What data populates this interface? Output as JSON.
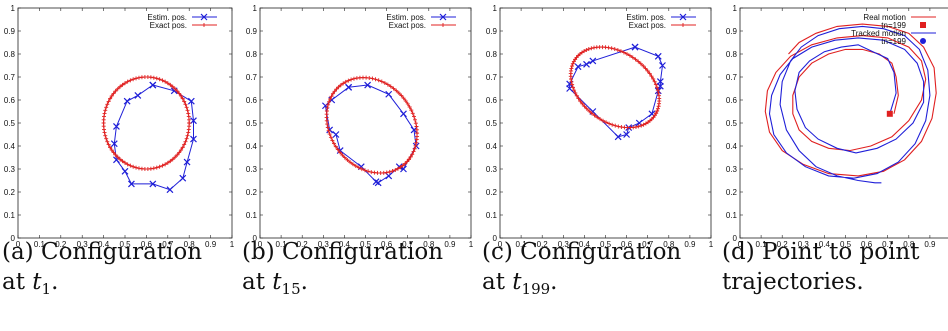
{
  "chart_data": [
    {
      "type": "line",
      "title": "",
      "xlabel": "",
      "ylabel": "",
      "xlim": [
        0,
        1
      ],
      "ylim": [
        0,
        1
      ],
      "xticks": [
        "0",
        "0.1",
        "0.2",
        "0.3",
        "0.4",
        "0.5",
        "0.6",
        "0.7",
        "0.8",
        "0.9",
        "1"
      ],
      "yticks": [
        "0",
        "0.1",
        "0.2",
        "0.3",
        "0.4",
        "0.5",
        "0.6",
        "0.7",
        "0.8",
        "0.9",
        "1"
      ],
      "grid": false,
      "legend_position": "top-right",
      "series": [
        {
          "name": "Estim. pos.",
          "color": "#1f1fd8",
          "marker": "x",
          "x": [
            0.63,
            0.73,
            0.81,
            0.82,
            0.82,
            0.79,
            0.77,
            0.71,
            0.63,
            0.53,
            0.5,
            0.46,
            0.45,
            0.46,
            0.51,
            0.56,
            0.63
          ],
          "y": [
            0.665,
            0.64,
            0.595,
            0.51,
            0.43,
            0.33,
            0.26,
            0.21,
            0.235,
            0.235,
            0.29,
            0.34,
            0.41,
            0.485,
            0.595,
            0.62,
            0.665
          ]
        },
        {
          "name": "Exact pos.",
          "color": "#e02020",
          "marker": "+",
          "shape": "circle",
          "center": [
            0.6,
            0.5
          ],
          "radius": 0.2
        }
      ],
      "caption": "(a) Configuration at t1."
    },
    {
      "type": "line",
      "title": "",
      "xlabel": "",
      "ylabel": "",
      "xlim": [
        0,
        1
      ],
      "ylim": [
        0,
        1
      ],
      "xticks": [
        "0",
        "0.1",
        "0.2",
        "0.3",
        "0.4",
        "0.5",
        "0.6",
        "0.7",
        "0.8",
        "0.9",
        "1"
      ],
      "yticks": [
        "0",
        "0.1",
        "0.2",
        "0.3",
        "0.4",
        "0.5",
        "0.6",
        "0.7",
        "0.8",
        "0.9",
        "1"
      ],
      "grid": false,
      "legend_position": "top-right",
      "series": [
        {
          "name": "Estim. pos.",
          "color": "#1f1fd8",
          "marker": "x",
          "x": [
            0.42,
            0.51,
            0.61,
            0.68,
            0.73,
            0.74,
            0.68,
            0.66,
            0.61,
            0.56,
            0.55,
            0.48,
            0.38,
            0.36,
            0.33,
            0.31,
            0.34,
            0.42
          ],
          "y": [
            0.655,
            0.665,
            0.625,
            0.54,
            0.47,
            0.4,
            0.3,
            0.31,
            0.27,
            0.24,
            0.245,
            0.31,
            0.38,
            0.45,
            0.47,
            0.575,
            0.6,
            0.655
          ]
        },
        {
          "name": "Exact pos.",
          "color": "#e02020",
          "marker": "+",
          "shape": "ellipse",
          "center": [
            0.53,
            0.49
          ],
          "rx": 0.23,
          "ry": 0.19,
          "rotation_deg": -40
        }
      ],
      "caption": "(b) Configuration at t15."
    },
    {
      "type": "line",
      "title": "",
      "xlabel": "",
      "ylabel": "",
      "xlim": [
        0,
        1
      ],
      "ylim": [
        0,
        1
      ],
      "xticks": [
        "0",
        "0.1",
        "0.2",
        "0.3",
        "0.4",
        "0.5",
        "0.6",
        "0.7",
        "0.8",
        "0.9",
        "1"
      ],
      "yticks": [
        "0",
        "0.1",
        "0.2",
        "0.3",
        "0.4",
        "0.5",
        "0.6",
        "0.7",
        "0.8",
        "0.9",
        "1"
      ],
      "grid": false,
      "legend_position": "top-right",
      "series": [
        {
          "name": "Estim. pos.",
          "color": "#1f1fd8",
          "marker": "x",
          "x": [
            0.64,
            0.75,
            0.77,
            0.76,
            0.76,
            0.75,
            0.72,
            0.66,
            0.61,
            0.6,
            0.56,
            0.44,
            0.33,
            0.33,
            0.37,
            0.41,
            0.44,
            0.64
          ],
          "y": [
            0.83,
            0.79,
            0.75,
            0.68,
            0.66,
            0.64,
            0.54,
            0.5,
            0.48,
            0.45,
            0.44,
            0.55,
            0.65,
            0.67,
            0.745,
            0.755,
            0.77,
            0.83
          ]
        },
        {
          "name": "Exact pos.",
          "color": "#e02020",
          "marker": "+",
          "shape": "ellipse",
          "center": [
            0.545,
            0.655
          ],
          "rx": 0.225,
          "ry": 0.155,
          "rotation_deg": -30
        }
      ],
      "caption": "(c) Configuration at t199."
    },
    {
      "type": "line",
      "title": "",
      "xlabel": "",
      "ylabel": "",
      "xlim": [
        0,
        1
      ],
      "ylim": [
        0,
        1
      ],
      "xticks": [
        "0",
        "0.1",
        "0.2",
        "0.3",
        "0.4",
        "0.5",
        "0.6",
        "0.7",
        "0.8",
        "0.9"
      ],
      "yticks": [
        "0",
        "0.1",
        "0.2",
        "0.3",
        "0.4",
        "0.5",
        "0.6",
        "0.7",
        "0.8",
        "0.9",
        "1"
      ],
      "grid": false,
      "legend_position": "top-right",
      "series": [
        {
          "name": "Real motion",
          "color": "#e02020",
          "x": [
            0.73,
            0.75,
            0.74,
            0.72,
            0.66,
            0.58,
            0.5,
            0.42,
            0.34,
            0.28,
            0.25,
            0.25,
            0.28,
            0.34,
            0.42,
            0.52,
            0.62,
            0.72,
            0.8,
            0.86,
            0.88,
            0.86,
            0.8,
            0.7,
            0.58,
            0.46,
            0.34,
            0.24,
            0.17,
            0.13,
            0.12,
            0.14,
            0.2,
            0.3,
            0.42,
            0.56,
            0.68,
            0.78,
            0.86,
            0.91,
            0.93,
            0.92,
            0.87,
            0.8,
            0.7,
            0.58,
            0.46,
            0.36,
            0.28,
            0.23
          ],
          "y": [
            0.54,
            0.62,
            0.7,
            0.76,
            0.8,
            0.82,
            0.82,
            0.8,
            0.76,
            0.7,
            0.62,
            0.54,
            0.47,
            0.42,
            0.39,
            0.38,
            0.4,
            0.44,
            0.51,
            0.6,
            0.69,
            0.77,
            0.83,
            0.87,
            0.88,
            0.87,
            0.84,
            0.79,
            0.72,
            0.64,
            0.55,
            0.46,
            0.38,
            0.32,
            0.28,
            0.27,
            0.29,
            0.34,
            0.42,
            0.52,
            0.63,
            0.74,
            0.83,
            0.89,
            0.92,
            0.93,
            0.92,
            0.89,
            0.85,
            0.8
          ]
        },
        {
          "name": "Tracked motion",
          "color": "#1f1fd8",
          "x": [
            0.71,
            0.74,
            0.73,
            0.7,
            0.63,
            0.56,
            0.48,
            0.4,
            0.33,
            0.28,
            0.26,
            0.27,
            0.31,
            0.37,
            0.46,
            0.55,
            0.65,
            0.74,
            0.82,
            0.87,
            0.87,
            0.84,
            0.78,
            0.68,
            0.56,
            0.45,
            0.34,
            0.25,
            0.19,
            0.15,
            0.14,
            0.16,
            0.22,
            0.31,
            0.42,
            0.54,
            0.65,
            0.75,
            0.83,
            0.88,
            0.9,
            0.89,
            0.85,
            0.78,
            0.68,
            0.58,
            0.47,
            0.37,
            0.29,
            0.24,
            0.2,
            0.19,
            0.22,
            0.28,
            0.36,
            0.46,
            0.56,
            0.64,
            0.67
          ],
          "y": [
            0.54,
            0.63,
            0.72,
            0.78,
            0.81,
            0.84,
            0.83,
            0.81,
            0.77,
            0.72,
            0.64,
            0.56,
            0.48,
            0.43,
            0.39,
            0.37,
            0.39,
            0.43,
            0.5,
            0.59,
            0.68,
            0.76,
            0.82,
            0.86,
            0.87,
            0.86,
            0.83,
            0.78,
            0.71,
            0.62,
            0.54,
            0.45,
            0.37,
            0.31,
            0.27,
            0.26,
            0.28,
            0.33,
            0.41,
            0.51,
            0.62,
            0.73,
            0.82,
            0.88,
            0.91,
            0.92,
            0.91,
            0.88,
            0.83,
            0.77,
            0.68,
            0.58,
            0.47,
            0.38,
            0.31,
            0.27,
            0.25,
            0.24,
            0.24
          ]
        }
      ],
      "markers": [
        {
          "label": "tn=199",
          "color": "#e02020",
          "shape": "square",
          "x": 0.71,
          "y": 0.54
        },
        {
          "label": "tn=199",
          "color": "#1f1fd8",
          "shape": "circle",
          "x": 0.71,
          "y": 0.54
        }
      ],
      "caption": "(d) Point to point trajectories."
    }
  ],
  "captions": [
    {
      "line1": "(a)  Configuration",
      "line2_prefix": "at ",
      "var": "t",
      "sub": "1",
      "suffix": "."
    },
    {
      "line1": "(b)  Configuration",
      "line2_prefix": "at ",
      "var": "t",
      "sub": "15",
      "suffix": "."
    },
    {
      "line1": "(c)  Configuration",
      "line2_prefix": "at ",
      "var": "t",
      "sub": "199",
      "suffix": "."
    },
    {
      "line1": "(d) Point to point",
      "line2_prefix": "trajectories.",
      "var": "",
      "sub": "",
      "suffix": ""
    }
  ]
}
